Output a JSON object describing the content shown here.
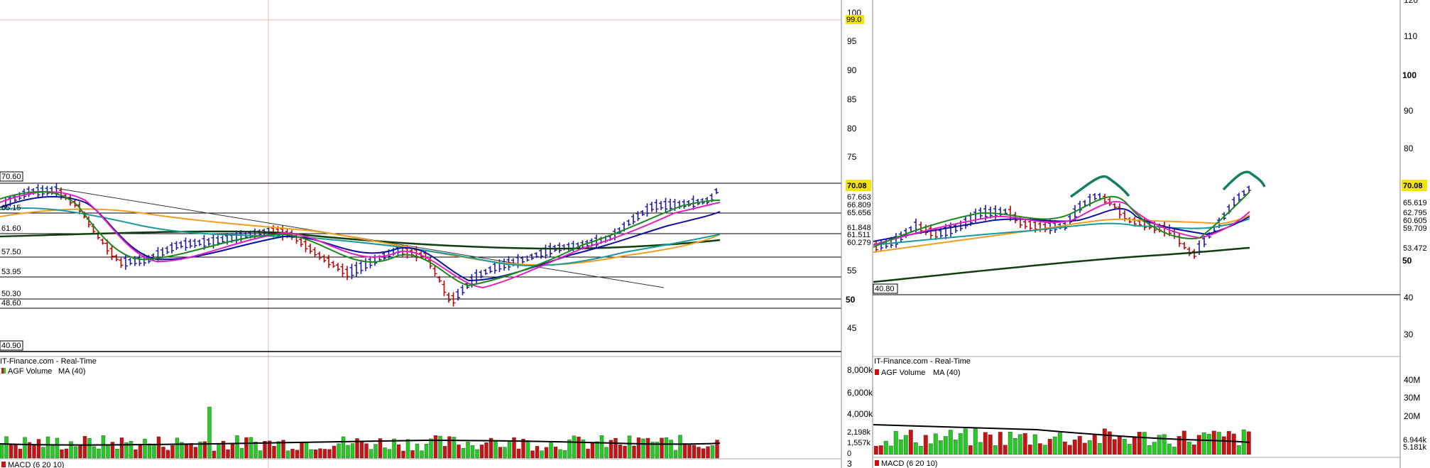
{
  "charts": [
    {
      "id": "left",
      "source_label": "IT-Finance.com - Real-Time",
      "volume_label": "AGF Volume",
      "volume_ma_label": "MA (40)",
      "macd_label": "MACD (6 20 10)",
      "price_axis_ticks": [
        "100",
        "95",
        "90",
        "85",
        "80",
        "75",
        "55",
        "50",
        "45"
      ],
      "level_labels": [
        "70.60",
        "65.15",
        "61.60",
        "57.50",
        "53.95",
        "50.30",
        "48.60",
        "40.90"
      ],
      "cursor_price_label": "99.0",
      "last_price_label": "70.08",
      "ma_value_labels": [
        "67.663",
        "66.809",
        "65.656",
        "61.848",
        "61.511",
        "60.279"
      ],
      "volume_axis_ticks": [
        "8,000k",
        "6,000k",
        "4,000k"
      ],
      "volume_value_labels": [
        "2,198k",
        "1,557k",
        "0"
      ],
      "macd_axis_tick": "3"
    },
    {
      "id": "right",
      "source_label": "IT-Finance.com - Real-Time",
      "volume_label": "AGF Volume",
      "volume_ma_label": "MA (40)",
      "macd_label": "MACD (6 20 10)",
      "price_axis_ticks": [
        "120",
        "110",
        "100",
        "90",
        "80",
        "50",
        "40",
        "30"
      ],
      "level_labels": [
        "40.80"
      ],
      "last_price_label": "70.08",
      "ma_value_labels": [
        "65.619",
        "62.795",
        "60.605",
        "59.709",
        "53.472"
      ],
      "volume_axis_ticks": [
        "40M",
        "30M",
        "20M"
      ],
      "volume_value_labels": [
        "6.944k",
        "5.181k"
      ]
    }
  ],
  "colors": {
    "up_bar": "#1a1aa8",
    "down_bar": "#c00000",
    "vol_up": "#22cc22",
    "vol_down": "#cc1111",
    "ma_green": "#1a8a1a",
    "ma_magenta": "#e020c0",
    "ma_blue": "#1010a0",
    "ma_teal": "#1a9a9a",
    "ma_orange": "#f0a020",
    "ma_dark_green": "#104010",
    "highlight_yellow": "#f5e400",
    "annotation_green": "#12805a"
  }
}
